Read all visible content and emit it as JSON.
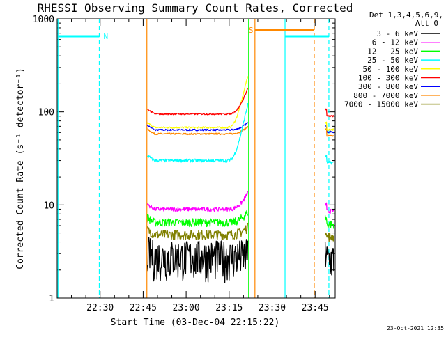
{
  "chart_data": {
    "type": "line",
    "title": "RHESSI Observing Summary Count Rates, Corrected",
    "xlabel": "Start Time (03-Dec-04 22:15:22)",
    "ylabel": "Corrected Count Rate (s⁻¹ detector⁻¹)",
    "yscale": "log",
    "ylim": [
      1,
      1000
    ],
    "yticks": [
      {
        "value": 1,
        "label": "1"
      },
      {
        "value": 10,
        "label": "10"
      },
      {
        "value": 100,
        "label": "100"
      },
      {
        "value": 1000,
        "label": "1000"
      }
    ],
    "xlim_min": [
      15,
      112
    ],
    "xticks": [
      {
        "value": 30,
        "label": "22:30"
      },
      {
        "value": 45,
        "label": "22:45"
      },
      {
        "value": 60,
        "label": "23:00"
      },
      {
        "value": 75,
        "label": "23:15"
      },
      {
        "value": 90,
        "label": "23:30"
      },
      {
        "value": 105,
        "label": "23:45"
      }
    ],
    "legend_header": [
      "Det 1,3,4,5,6,9,",
      "Att 0"
    ],
    "legend_position": "top-right, outside plot",
    "series": [
      {
        "name": "3 - 6 keV",
        "color": "#000000",
        "base": 2.8,
        "noise": 0.3,
        "flare": 1.05
      },
      {
        "name": "6 - 12 keV",
        "color": "#ff00ff",
        "base": 9.0,
        "noise": 0.05,
        "flare": 1.5
      },
      {
        "name": "12 - 25 keV",
        "color": "#00ff00",
        "base": 6.5,
        "noise": 0.1,
        "flare": 1.3
      },
      {
        "name": "25 - 50 keV",
        "color": "#00ffff",
        "base": 30,
        "noise": 0.04,
        "flare": 4.0
      },
      {
        "name": "50 - 100 keV",
        "color": "#ffff00",
        "base": 68,
        "noise": 0.02,
        "flare": 3.6
      },
      {
        "name": "100 - 300 keV",
        "color": "#ff0000",
        "base": 95,
        "noise": 0.02,
        "flare": 1.9
      },
      {
        "name": "300 - 800 keV",
        "color": "#0000ff",
        "base": 64,
        "noise": 0.02,
        "flare": 1.2
      },
      {
        "name": "800 - 7000 keV",
        "color": "#ff8800",
        "base": 58,
        "noise": 0.02,
        "flare": 1.2
      },
      {
        "name": "7000 - 15000 keV",
        "color": "#808000",
        "base": 4.8,
        "noise": 0.12,
        "flare": 1.2
      }
    ],
    "data_intervals_min": [
      [
        46.5,
        81.5
      ],
      [
        108.5,
        111.5
      ]
    ],
    "vertical_markers": [
      {
        "x": 15.3,
        "color": "#00ffff",
        "style": "solid"
      },
      {
        "x": 29.7,
        "color": "#00ffff",
        "style": "dashed"
      },
      {
        "x": 46.3,
        "color": "#ff8800",
        "style": "solid"
      },
      {
        "x": 81.8,
        "color": "#00ff00",
        "style": "solid"
      },
      {
        "x": 84.0,
        "color": "#ff8800",
        "style": "solid"
      },
      {
        "x": 94.5,
        "color": "#00ffff",
        "style": "solid"
      },
      {
        "x": 104.7,
        "color": "#ff8800",
        "style": "dashed"
      },
      {
        "x": 109.8,
        "color": "#00ffff",
        "style": "dashed"
      }
    ],
    "flag_bars": [
      {
        "x0": 15.3,
        "x1": 29.7,
        "y": 650,
        "color": "#00ffff",
        "label": "N"
      },
      {
        "x0": 94.5,
        "x1": 109.8,
        "y": 650,
        "color": "#00ffff",
        "label": ""
      },
      {
        "x0": 84.0,
        "x1": 104.7,
        "y": 760,
        "color": "#ff8800",
        "label": "S"
      }
    ],
    "footer_date": "23-Oct-2021 12:35"
  }
}
